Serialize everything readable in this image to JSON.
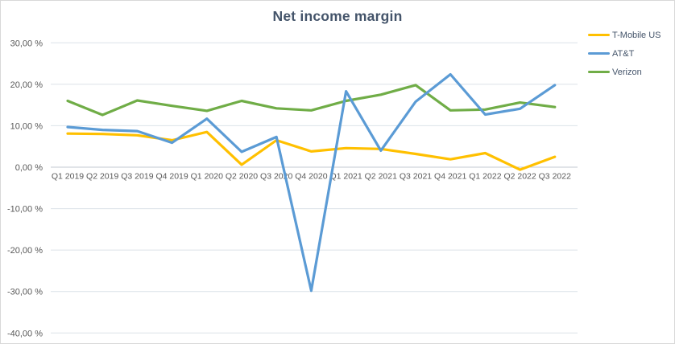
{
  "window": {
    "background_color": "#FFFFFF",
    "border_color": "#D8D8D8"
  },
  "styles": {
    "title_color": "#44546A",
    "axis_label_color": "#595959",
    "legend_label_color": "#44546A",
    "gridline_color": "#DCE2E8",
    "zero_axis_line_color": "#C3CAD1"
  },
  "chart_data": {
    "type": "line",
    "title": "Net income margin",
    "xlabel": "",
    "ylabel": "",
    "grid": true,
    "legend_position": "right",
    "value_format": "percent, comma decimal separator, e.g. 30,00 %",
    "categories": [
      "Q1 2019",
      "Q2 2019",
      "Q3 2019",
      "Q4 2019",
      "Q1 2020",
      "Q2 2020",
      "Q3 2020",
      "Q4 2020",
      "Q1 2021",
      "Q2 2021",
      "Q3 2021",
      "Q4 2021",
      "Q1 2022",
      "Q2 2022",
      "Q3 2022"
    ],
    "series": [
      {
        "name": "T-Mobile US",
        "color": "#FFC000",
        "values": [
          8.1,
          8.0,
          7.7,
          6.5,
          8.5,
          0.6,
          6.5,
          3.8,
          4.6,
          4.4,
          3.2,
          1.9,
          3.4,
          -0.6,
          2.5
        ]
      },
      {
        "name": "AT&T",
        "color": "#5B9BD5",
        "values": [
          9.7,
          9.0,
          8.7,
          5.9,
          11.7,
          3.7,
          7.3,
          -29.8,
          18.3,
          4.0,
          15.8,
          22.4,
          12.7,
          14.1,
          19.8
        ]
      },
      {
        "name": "Verizon",
        "color": "#70AD47",
        "values": [
          16.0,
          12.6,
          16.1,
          14.8,
          13.6,
          16.0,
          14.2,
          13.7,
          16.0,
          17.5,
          19.8,
          13.7,
          13.9,
          15.6,
          14.5
        ]
      }
    ],
    "y_axis": {
      "min": -40,
      "max": 30,
      "tick_step": 10,
      "ticks": [
        {
          "value": 30,
          "label": "30,00 %"
        },
        {
          "value": 20,
          "label": "20,00 %"
        },
        {
          "value": 10,
          "label": "10,00 %"
        },
        {
          "value": 0,
          "label": "0,00 %"
        },
        {
          "value": -10,
          "label": "-10,00 %"
        },
        {
          "value": -20,
          "label": "-20,00 %"
        },
        {
          "value": -30,
          "label": "-30,00 %"
        },
        {
          "value": -40,
          "label": "-40,00 %"
        }
      ]
    }
  }
}
